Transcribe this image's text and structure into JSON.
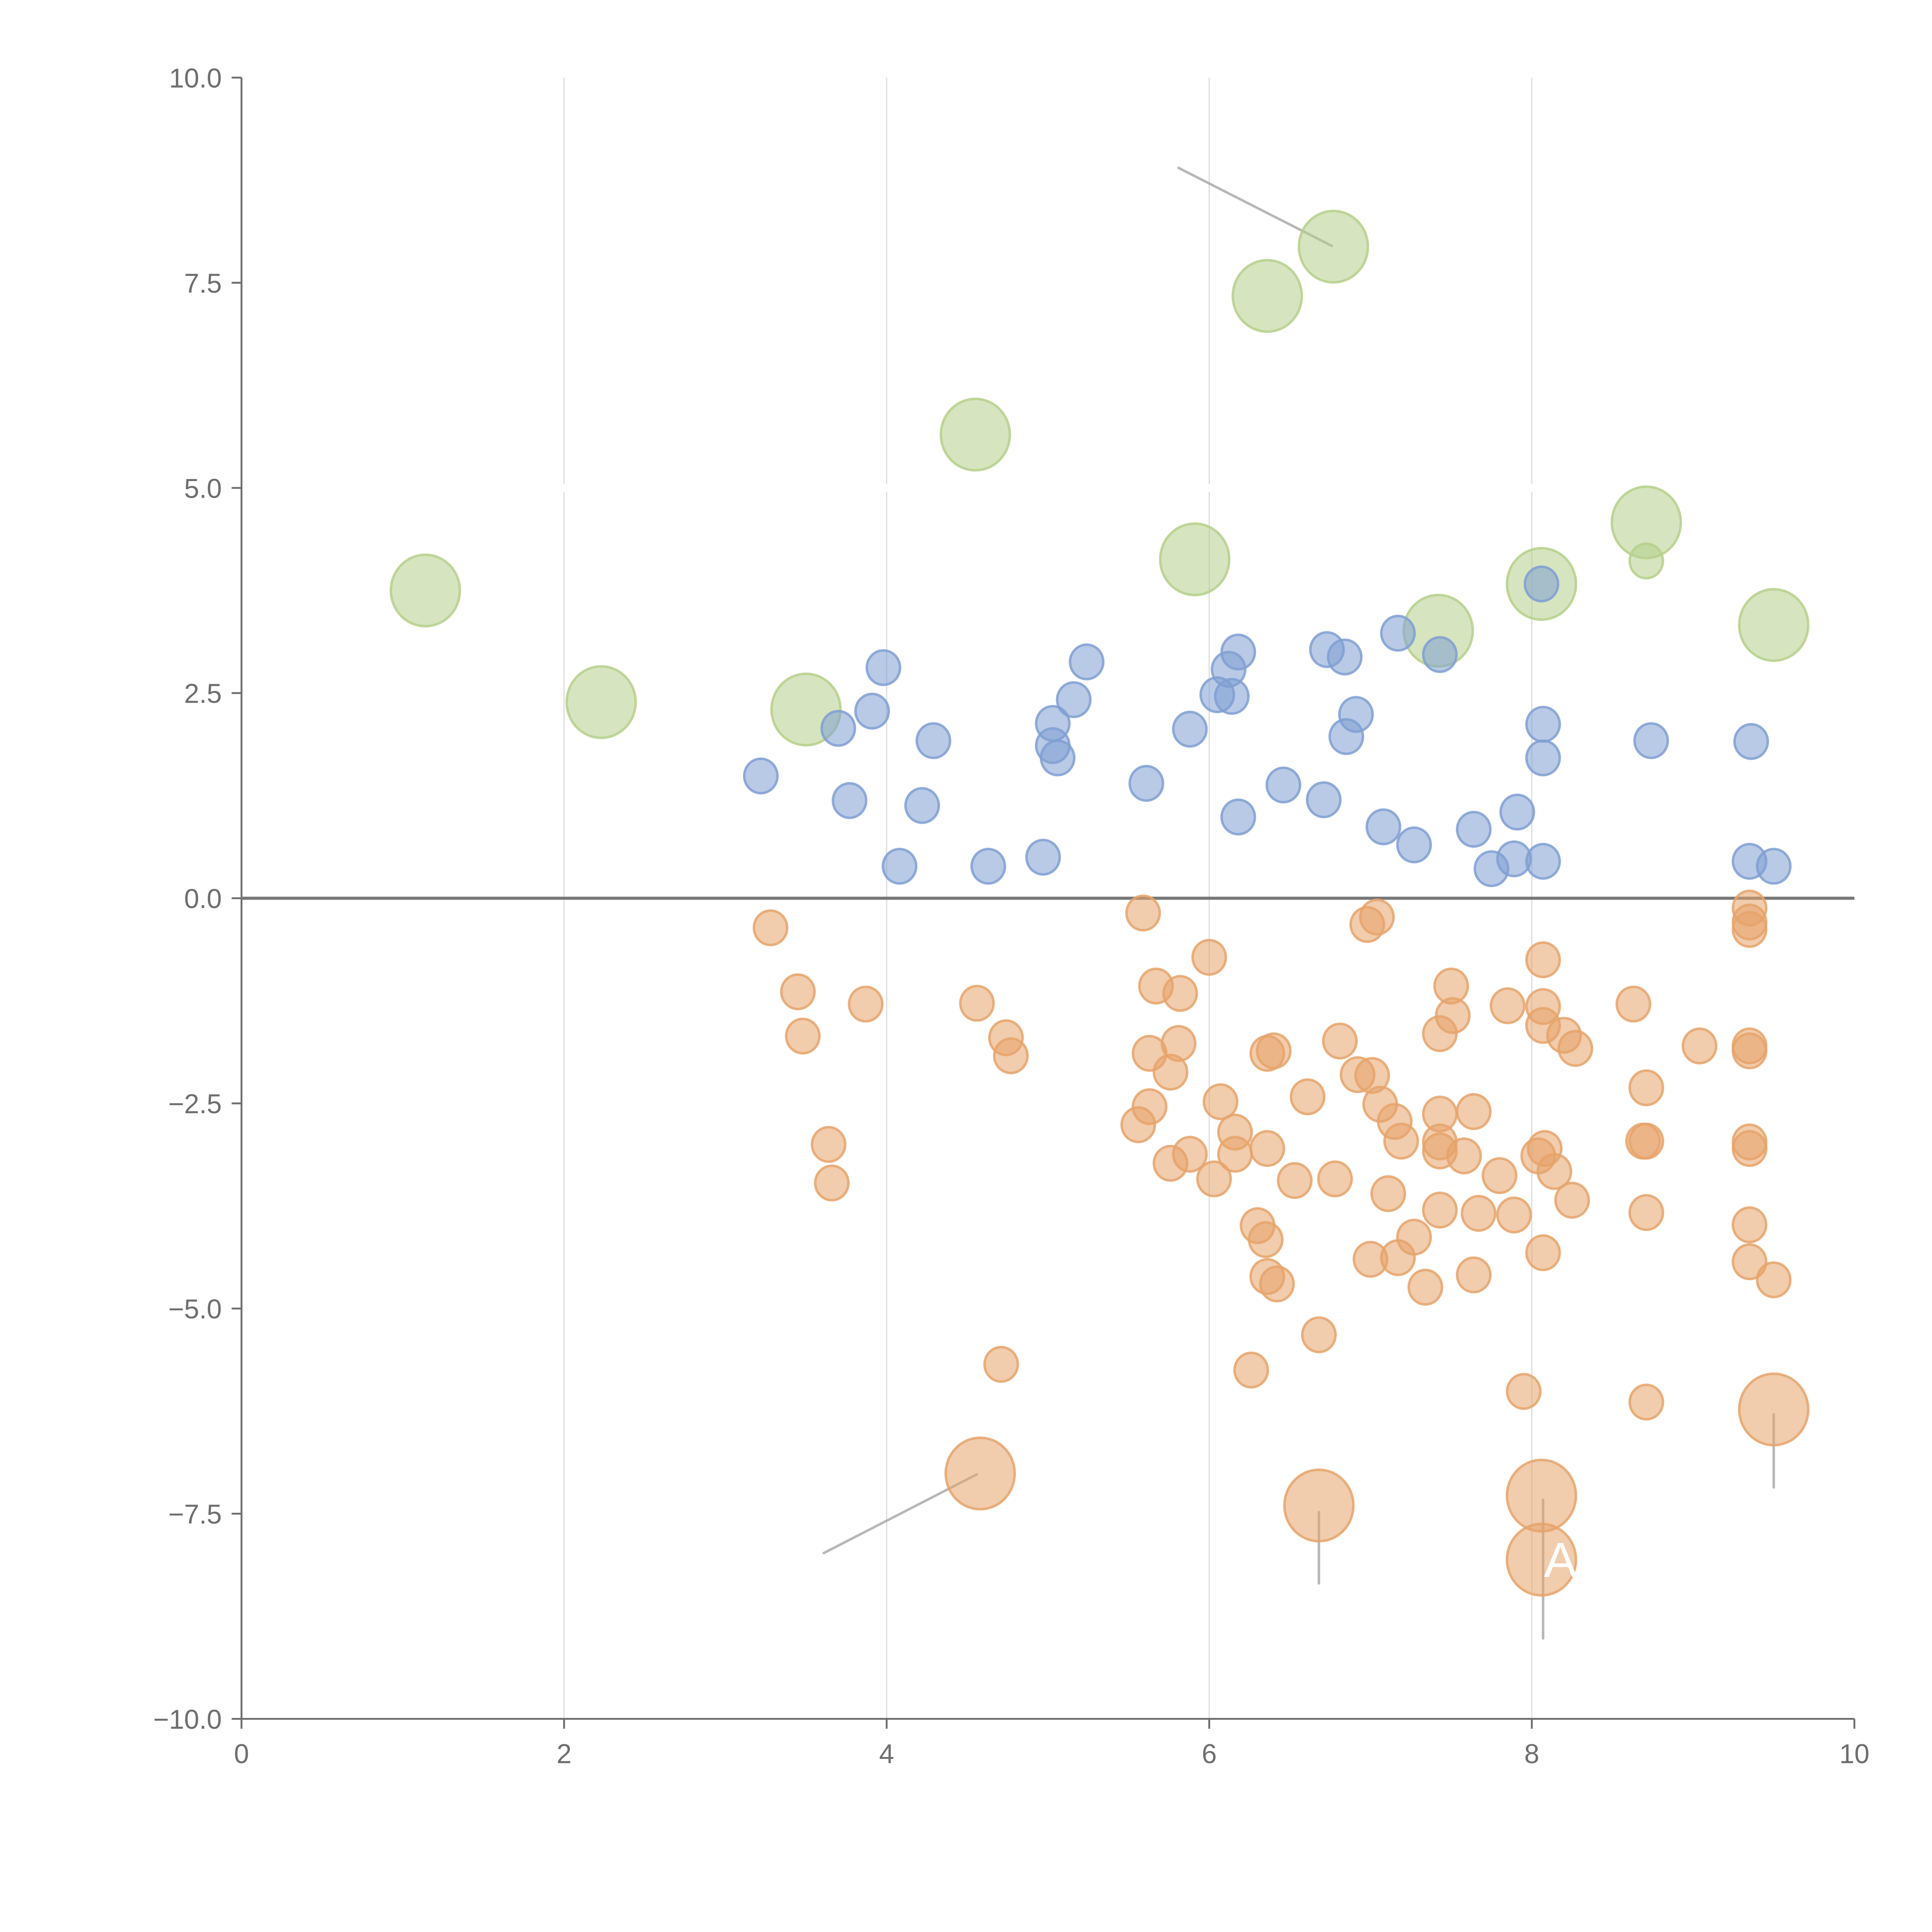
{
  "chart_data": {
    "type": "scatter",
    "title": "",
    "xlabel": "",
    "ylabel": "",
    "xlim": [
      0,
      10
    ],
    "ylim": [
      -10,
      10
    ],
    "grid": "vertical",
    "x_ticks": [
      "0",
      "2",
      "4",
      "6",
      "8",
      "10"
    ],
    "y_ticks": [
      "10.0",
      "7.5",
      "5.0",
      "2.5",
      "0.0",
      "−2.5",
      "−5.0",
      "−7.5",
      "−10.0"
    ],
    "colors": {
      "green": "#b5d08a",
      "blue": "#7f9fd2",
      "orange": "#e6a36a",
      "axis": "#6e6e6e",
      "grid": "#dddddd"
    },
    "series": [
      {
        "name": "green",
        "color": "#b5d08a",
        "points": [
          [
            1.14,
            3.75,
            "L"
          ],
          [
            2.23,
            2.39,
            "L"
          ],
          [
            3.5,
            2.3,
            "L"
          ],
          [
            4.55,
            5.65,
            "L"
          ],
          [
            5.91,
            4.13,
            "L"
          ],
          [
            6.36,
            7.34,
            "L"
          ],
          [
            6.77,
            7.94,
            "L"
          ],
          [
            7.42,
            3.26,
            "L"
          ],
          [
            8.06,
            3.83,
            "L"
          ],
          [
            8.71,
            4.58,
            "L"
          ],
          [
            8.71,
            4.11,
            "S"
          ],
          [
            9.5,
            3.33,
            "L"
          ]
        ]
      },
      {
        "name": "blue",
        "color": "#7f9fd2",
        "points": [
          [
            3.22,
            1.49
          ],
          [
            3.7,
            2.07
          ],
          [
            3.77,
            1.19
          ],
          [
            3.91,
            2.28
          ],
          [
            3.98,
            2.81
          ],
          [
            4.08,
            0.39
          ],
          [
            4.22,
            1.13
          ],
          [
            4.29,
            1.92
          ],
          [
            4.63,
            0.39
          ],
          [
            4.97,
            0.5
          ],
          [
            5.03,
            2.13
          ],
          [
            5.03,
            1.86
          ],
          [
            5.06,
            1.71
          ],
          [
            5.16,
            2.42
          ],
          [
            5.24,
            2.88
          ],
          [
            5.61,
            1.4
          ],
          [
            5.88,
            2.06
          ],
          [
            6.05,
            2.48
          ],
          [
            6.12,
            2.79
          ],
          [
            6.14,
            2.46
          ],
          [
            6.18,
            3.0
          ],
          [
            6.18,
            0.99
          ],
          [
            6.46,
            1.38
          ],
          [
            6.71,
            1.2
          ],
          [
            6.73,
            3.03
          ],
          [
            6.84,
            2.94
          ],
          [
            6.85,
            1.97
          ],
          [
            6.91,
            2.24
          ],
          [
            7.08,
            0.87
          ],
          [
            7.17,
            3.23
          ],
          [
            7.27,
            0.65
          ],
          [
            7.43,
            2.97
          ],
          [
            7.64,
            0.84
          ],
          [
            7.75,
            0.36
          ],
          [
            7.89,
            0.48
          ],
          [
            7.91,
            1.05
          ],
          [
            8.06,
            3.83
          ],
          [
            8.07,
            2.12
          ],
          [
            8.07,
            1.71
          ],
          [
            8.07,
            0.45
          ],
          [
            8.74,
            1.92
          ],
          [
            9.36,
            1.91
          ],
          [
            9.35,
            0.45
          ],
          [
            9.5,
            0.39
          ]
        ]
      },
      {
        "name": "orange",
        "color": "#e6a36a",
        "points": [
          [
            3.28,
            -0.36
          ],
          [
            3.45,
            -1.14
          ],
          [
            3.48,
            -1.68
          ],
          [
            3.64,
            -3.0
          ],
          [
            3.66,
            -3.47
          ],
          [
            3.87,
            -1.29
          ],
          [
            4.56,
            -1.28
          ],
          [
            4.71,
            -5.68
          ],
          [
            4.74,
            -1.7
          ],
          [
            4.77,
            -1.92
          ],
          [
            5.56,
            -2.76
          ],
          [
            5.59,
            -0.18
          ],
          [
            5.63,
            -2.54
          ],
          [
            5.63,
            -1.89
          ],
          [
            5.67,
            -1.07
          ],
          [
            5.76,
            -3.23
          ],
          [
            5.76,
            -2.12
          ],
          [
            5.81,
            -1.77
          ],
          [
            5.82,
            -1.16
          ],
          [
            5.88,
            -3.12
          ],
          [
            6.0,
            -0.72
          ],
          [
            6.03,
            -3.42
          ],
          [
            6.07,
            -2.48
          ],
          [
            6.16,
            -2.85
          ],
          [
            6.16,
            -3.12
          ],
          [
            6.26,
            -5.75
          ],
          [
            6.3,
            -3.99
          ],
          [
            6.35,
            -4.16
          ],
          [
            6.36,
            -1.89
          ],
          [
            6.36,
            -4.61
          ],
          [
            6.36,
            -3.05
          ],
          [
            6.4,
            -1.86
          ],
          [
            6.42,
            -4.7
          ],
          [
            6.53,
            -3.44
          ],
          [
            6.61,
            -2.42
          ],
          [
            6.68,
            -5.32
          ],
          [
            6.78,
            -3.42
          ],
          [
            6.81,
            -1.74
          ],
          [
            6.92,
            -2.15
          ],
          [
            6.98,
            -0.32
          ],
          [
            7.01,
            -2.16
          ],
          [
            7.04,
            -0.23
          ],
          [
            7.06,
            -2.51
          ],
          [
            7.11,
            -3.6
          ],
          [
            7.15,
            -2.72
          ],
          [
            7.17,
            -4.38
          ],
          [
            7.19,
            -2.96
          ],
          [
            7.0,
            -4.4
          ],
          [
            7.27,
            -4.13
          ],
          [
            7.34,
            -4.74
          ],
          [
            7.43,
            -1.65
          ],
          [
            7.43,
            -2.63
          ],
          [
            7.43,
            -2.97
          ],
          [
            7.43,
            -3.08
          ],
          [
            7.43,
            -3.8
          ],
          [
            7.5,
            -1.07
          ],
          [
            7.51,
            -1.43
          ],
          [
            7.58,
            -3.14
          ],
          [
            7.64,
            -2.6
          ],
          [
            7.64,
            -4.59
          ],
          [
            7.67,
            -3.84
          ],
          [
            7.8,
            -3.38
          ],
          [
            7.85,
            -1.31
          ],
          [
            7.89,
            -3.86
          ],
          [
            7.95,
            -6.01
          ],
          [
            8.04,
            -3.14
          ],
          [
            8.07,
            -0.75
          ],
          [
            8.07,
            -1.32
          ],
          [
            8.07,
            -1.55
          ],
          [
            8.07,
            -4.32
          ],
          [
            8.08,
            -3.05
          ],
          [
            8.14,
            -3.33
          ],
          [
            8.2,
            -1.67
          ],
          [
            8.25,
            -3.68
          ],
          [
            8.27,
            -1.83
          ],
          [
            8.63,
            -1.29
          ],
          [
            8.71,
            -2.31
          ],
          [
            8.69,
            -2.96
          ],
          [
            8.71,
            -2.96
          ],
          [
            8.71,
            -3.83
          ],
          [
            8.71,
            -6.14
          ],
          [
            9.04,
            -1.8
          ],
          [
            9.35,
            -0.12
          ],
          [
            9.35,
            -0.29
          ],
          [
            9.35,
            -0.38
          ],
          [
            9.35,
            -1.8
          ],
          [
            9.35,
            -1.86
          ],
          [
            9.35,
            -2.97
          ],
          [
            9.35,
            -3.05
          ],
          [
            9.35,
            -3.98
          ],
          [
            9.35,
            -4.43
          ],
          [
            9.5,
            -4.65
          ],
          [
            4.58,
            -7.01,
            "L"
          ],
          [
            6.68,
            -7.4,
            "L"
          ],
          [
            8.06,
            -7.28,
            "L"
          ],
          [
            8.06,
            -8.06,
            "L"
          ],
          [
            9.5,
            -6.23,
            "L"
          ]
        ]
      }
    ],
    "annotations": [
      {
        "text": "A",
        "x": 8.06,
        "y": -8.06
      }
    ],
    "leader_lines": [
      [
        [
          5.81,
          8.9
        ],
        [
          6.76,
          7.95
        ]
      ],
      [
        [
          3.61,
          -7.98
        ],
        [
          4.56,
          -7.02
        ]
      ],
      [
        [
          6.68,
          -7.48
        ],
        [
          6.68,
          -8.35
        ]
      ],
      [
        [
          8.07,
          -7.33
        ],
        [
          8.07,
          -9.02
        ]
      ],
      [
        [
          9.5,
          -6.29
        ],
        [
          9.5,
          -7.18
        ]
      ]
    ]
  }
}
